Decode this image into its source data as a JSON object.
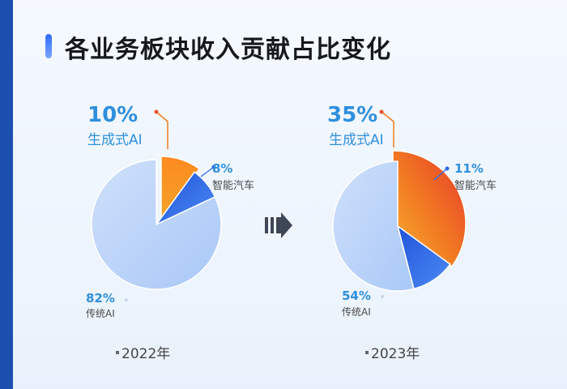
{
  "title": "各业务板块收入贡献占比变化",
  "colors": {
    "generative_ai": "#f07d1a",
    "smart_car": "#2e69e8",
    "traditional_ai": "#b6d1fb",
    "accent_text": "#2f8fde",
    "muted_text": "#4a4a4a"
  },
  "arrow_icon": "double-right-arrow-icon",
  "chart_data": [
    {
      "type": "pie",
      "year_label": "2022年",
      "slices": [
        {
          "name": "生成式AI",
          "value": 10,
          "value_label": "10%"
        },
        {
          "name": "智能汽车",
          "value": 8,
          "value_label": "8%"
        },
        {
          "name": "传统AI",
          "value": 82,
          "value_label": "82%"
        }
      ]
    },
    {
      "type": "pie",
      "year_label": "2023年",
      "slices": [
        {
          "name": "生成式AI",
          "value": 35,
          "value_label": "35%"
        },
        {
          "name": "智能汽车",
          "value": 11,
          "value_label": "11%"
        },
        {
          "name": "传统AI",
          "value": 54,
          "value_label": "54%"
        }
      ]
    }
  ]
}
